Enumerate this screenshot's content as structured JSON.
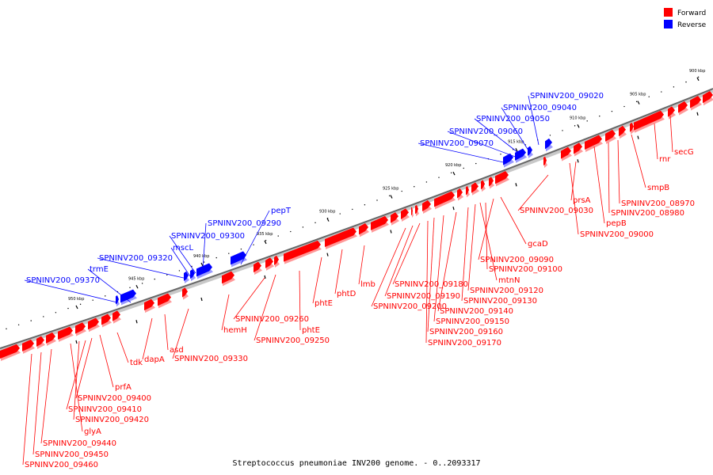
{
  "title": "Streptococcus pneumoniae INV200 genome. - 0..2093317",
  "legend": [
    {
      "label": "Forward",
      "color": "#ff0000"
    },
    {
      "label": "Reverse",
      "color": "#0000ff"
    }
  ],
  "colors": {
    "forward": "#ff0000",
    "reverse": "#0000ff",
    "axis": "#777777",
    "tick": "#000000"
  },
  "ticks": [
    {
      "label": "900 kbp",
      "kbp": 900
    },
    {
      "label": "905 kbp",
      "kbp": 905
    },
    {
      "label": "910 kbp",
      "kbp": 910
    },
    {
      "label": "915 kbp",
      "kbp": 915
    },
    {
      "label": "920 kbp",
      "kbp": 920
    },
    {
      "label": "925 kbp",
      "kbp": 925
    },
    {
      "label": "930 kbp",
      "kbp": 930
    },
    {
      "label": "935 kbp",
      "kbp": 935
    },
    {
      "label": "940 kbp",
      "kbp": 940
    },
    {
      "label": "945 kbp",
      "kbp": 945
    },
    {
      "label": "950 kbp",
      "kbp": 950
    }
  ],
  "reverse_labels": [
    "SPNINV200_09020",
    "SPNINV200_09040",
    "SPNINV200_09050",
    "SPNINV200_09060",
    "SPNINV200_09070",
    "pepT",
    "SPNINV200_09290",
    "SPNINV200_09300",
    "mscL",
    "SPNINV200_09320",
    "trmE",
    "SPNINV200_09370"
  ],
  "forward_labels": [
    "secG",
    "rnr",
    "smpB",
    "SPNINV200_08970",
    "SPNINV200_08980",
    "pepB",
    "SPNINV200_09000",
    "prsA",
    "SPNINV200_09030",
    "gcaD",
    "SPNINV200_09090",
    "SPNINV200_09100",
    "mtnN",
    "SPNINV200_09120",
    "SPNINV200_09130",
    "SPNINV200_09140",
    "SPNINV200_09150",
    "SPNINV200_09160",
    "SPNINV200_09170",
    "SPNINV200_09180",
    "SPNINV200_09190",
    "SPNINV200_09200",
    "lmb",
    "phtD",
    "phtE",
    "phtE",
    "SPNINV200_09250",
    "SPNINV200_09260",
    "hemH",
    "SPNINV200_09330",
    "asd",
    "dapA",
    "tdk",
    "prfA",
    "SPNINV200_09400",
    "SPNINV200_09410",
    "SPNINV200_09420",
    "glyA",
    "SPNINV200_09440",
    "SPNINV200_09450",
    "SPNINV200_09460"
  ]
}
